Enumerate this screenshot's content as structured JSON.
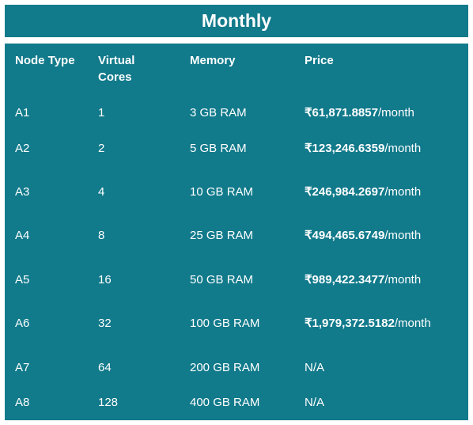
{
  "title": "Monthly",
  "table": {
    "headers": {
      "node_type": "Node Type",
      "virtual_cores_line1": "Virtual",
      "virtual_cores_line2": "Cores",
      "memory": "Memory",
      "price": "Price"
    },
    "rows": [
      {
        "node_type": "A1",
        "cores": "1",
        "memory": "3 GB RAM",
        "price_amount": "₹61,871.8857",
        "price_unit": "/month"
      },
      {
        "node_type": "A2",
        "cores": "2",
        "memory": "5 GB RAM",
        "price_amount": "₹123,246.6359",
        "price_unit": "/month"
      },
      {
        "node_type": "A3",
        "cores": "4",
        "memory": "10 GB RAM",
        "price_amount": "₹246,984.2697",
        "price_unit": "/month"
      },
      {
        "node_type": "A4",
        "cores": "8",
        "memory": "25 GB RAM",
        "price_amount": "₹494,465.6749",
        "price_unit": "/month"
      },
      {
        "node_type": "A5",
        "cores": "16",
        "memory": "50 GB RAM",
        "price_amount": "₹989,422.3477",
        "price_unit": "/month"
      },
      {
        "node_type": "A6",
        "cores": "32",
        "memory": "100 GB RAM",
        "price_amount": "₹1,979,372.5182",
        "price_unit": "/month"
      },
      {
        "node_type": "A7",
        "cores": "64",
        "memory": "200 GB RAM",
        "price_amount": "",
        "price_unit": "N/A"
      },
      {
        "node_type": "A8",
        "cores": "128",
        "memory": "400 GB RAM",
        "price_amount": "",
        "price_unit": "N/A"
      }
    ]
  },
  "colors": {
    "panel_background": "#117a8b",
    "text": "#ffffff"
  }
}
